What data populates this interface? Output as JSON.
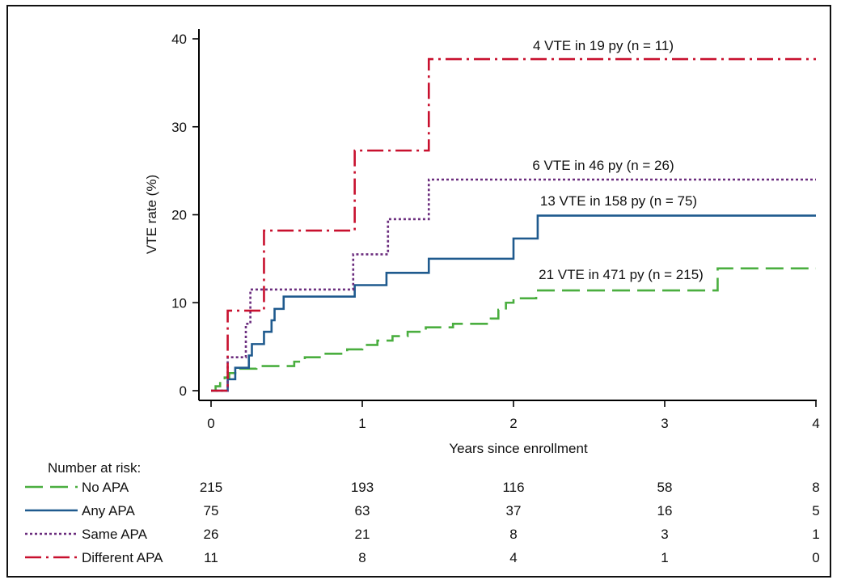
{
  "colors": {
    "no_apa": "#4aae3f",
    "any_apa": "#1f5a8e",
    "same_apa": "#6b2d7e",
    "different_apa": "#c8102e"
  },
  "chart_data": {
    "type": "line",
    "step": true,
    "xlabel": "Years since enrollment",
    "ylabel": "VTE rate (%)",
    "xlim": [
      0,
      4
    ],
    "ylim": [
      0,
      40
    ],
    "xticks": [
      "0",
      "1",
      "2",
      "3",
      "4"
    ],
    "yticks": [
      "0",
      "10",
      "20",
      "30",
      "40"
    ],
    "grid": false,
    "series": [
      {
        "name": "No APA",
        "key": "no_apa",
        "dash": "long-dash",
        "annotation": "21 VTE in 471 py (n = 215)",
        "points": [
          [
            0,
            0
          ],
          [
            0.03,
            0.5
          ],
          [
            0.06,
            1.0
          ],
          [
            0.09,
            1.5
          ],
          [
            0.12,
            2.0
          ],
          [
            0.18,
            2.5
          ],
          [
            0.3,
            2.8
          ],
          [
            0.5,
            2.8
          ],
          [
            0.55,
            3.3
          ],
          [
            0.62,
            3.8
          ],
          [
            0.75,
            4.2
          ],
          [
            0.9,
            4.7
          ],
          [
            1.0,
            5.2
          ],
          [
            1.1,
            5.7
          ],
          [
            1.2,
            6.2
          ],
          [
            1.3,
            6.7
          ],
          [
            1.42,
            7.2
          ],
          [
            1.6,
            7.6
          ],
          [
            1.85,
            8.2
          ],
          [
            1.9,
            9.2
          ],
          [
            1.95,
            10.0
          ],
          [
            2.0,
            10.5
          ],
          [
            2.15,
            11.4
          ],
          [
            3.35,
            13.9
          ],
          [
            4.0,
            13.9
          ]
        ]
      },
      {
        "name": "Any APA",
        "key": "any_apa",
        "dash": "solid",
        "annotation": "13 VTE in 158 py (n = 75)",
        "points": [
          [
            0,
            0
          ],
          [
            0.11,
            0
          ],
          [
            0.11,
            1.3
          ],
          [
            0.16,
            2.6
          ],
          [
            0.25,
            4.0
          ],
          [
            0.27,
            5.3
          ],
          [
            0.35,
            6.7
          ],
          [
            0.4,
            8.0
          ],
          [
            0.42,
            9.3
          ],
          [
            0.48,
            10.7
          ],
          [
            0.95,
            12.0
          ],
          [
            1.16,
            13.4
          ],
          [
            1.44,
            15.0
          ],
          [
            2.0,
            17.3
          ],
          [
            2.16,
            19.9
          ],
          [
            4.0,
            19.9
          ]
        ]
      },
      {
        "name": "Same APA",
        "key": "same_apa",
        "dash": "dotted",
        "annotation": "6 VTE in 46 py (n = 26)",
        "points": [
          [
            0,
            0
          ],
          [
            0.11,
            0
          ],
          [
            0.11,
            3.8
          ],
          [
            0.23,
            7.6
          ],
          [
            0.26,
            11.5
          ],
          [
            0.94,
            15.5
          ],
          [
            1.17,
            19.5
          ],
          [
            1.44,
            24.0
          ],
          [
            4.0,
            24.0
          ]
        ]
      },
      {
        "name": "Different APA",
        "key": "different_apa",
        "dash": "dash-dot",
        "annotation": "4 VTE in 19 py (n = 11)",
        "points": [
          [
            0,
            0
          ],
          [
            0.11,
            0
          ],
          [
            0.11,
            9.1
          ],
          [
            0.35,
            18.2
          ],
          [
            0.95,
            27.3
          ],
          [
            1.44,
            37.7
          ],
          [
            4.0,
            37.7
          ]
        ]
      }
    ],
    "risk_table": {
      "title": "Number at risk:",
      "times": [
        0,
        1,
        2,
        3,
        4
      ],
      "rows": [
        {
          "label": "No APA",
          "key": "no_apa",
          "values": [
            "215",
            "193",
            "116",
            "58",
            "8"
          ]
        },
        {
          "label": "Any APA",
          "key": "any_apa",
          "values": [
            "75",
            "63",
            "37",
            "16",
            "5"
          ]
        },
        {
          "label": "Same APA",
          "key": "same_apa",
          "values": [
            "26",
            "21",
            "8",
            "3",
            "1"
          ]
        },
        {
          "label": "Different APA",
          "key": "different_apa",
          "values": [
            "11",
            "8",
            "4",
            "1",
            "0"
          ]
        }
      ]
    }
  }
}
